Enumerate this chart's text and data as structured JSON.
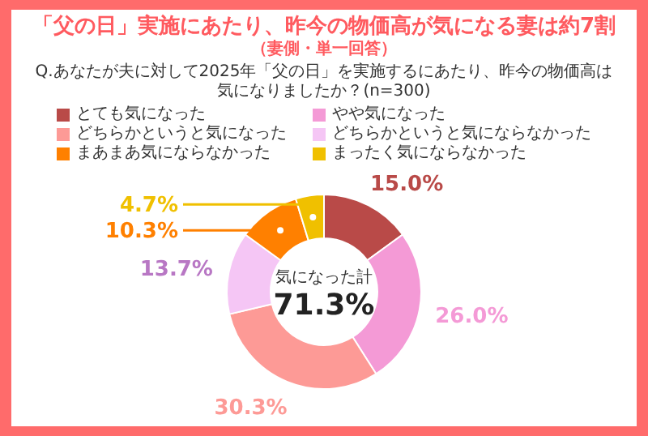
{
  "chart_data": {
    "type": "donut",
    "title": "「父の日」実施にあたり、昨今の物価高が気になる妻は約7割",
    "subtitle": "（妻側・単一回答）",
    "annotations": [
      "Q.あなたが夫に対して2025年「父の日」を実施するにあたり、昨今の物価高は気になりましたか？(n=300)",
      "気になった計",
      "71.3%"
    ],
    "categories": [
      "とても気になった",
      "やや気になった",
      "どちらかというと気になった",
      "どちらかというと気にならなかった",
      "まあまあ気にならなかった",
      "まったく気にならなかった"
    ],
    "values": [
      15.0,
      26.0,
      30.3,
      13.7,
      10.3,
      4.7
    ],
    "value_labels": [
      "15.0%",
      "26.0%",
      "30.3%",
      "13.7%",
      "10.3%",
      "4.7%"
    ],
    "colors": [
      "#b94a48",
      "#f49ad6",
      "#fd9a96",
      "#f5c6f5",
      "#ff8000",
      "#f0c000"
    ],
    "legend": "top"
  }
}
